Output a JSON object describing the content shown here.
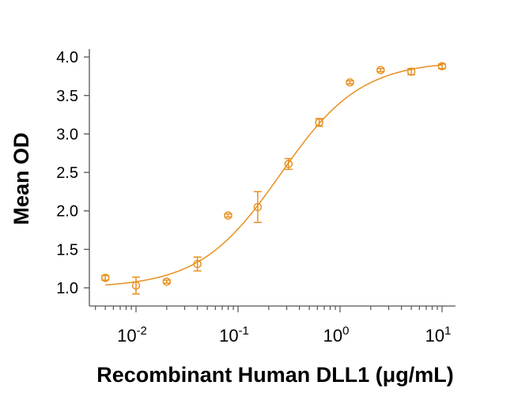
{
  "chart_data": {
    "type": "scatter",
    "title": "",
    "xlabel": "Recombinant Human DLL1 (μg/mL)",
    "ylabel": "Mean OD",
    "xscale": "log",
    "xlim": [
      0.004,
      15
    ],
    "ylim": [
      0.78,
      4.1
    ],
    "yticks": [
      "1.0",
      "1.5",
      "2.0",
      "2.5",
      "3.0",
      "3.5",
      "4.0"
    ],
    "xticks": [
      {
        "base": "10",
        "exp": "-2",
        "value": 0.01
      },
      {
        "base": "10",
        "exp": "-1",
        "value": 0.1
      },
      {
        "base": "10",
        "exp": "0",
        "value": 1
      },
      {
        "base": "10",
        "exp": "1",
        "value": 10
      }
    ],
    "series": [
      {
        "name": "DLL1",
        "color": "#E8901F",
        "x": [
          0.005,
          0.01,
          0.02,
          0.04,
          0.08,
          0.156,
          0.3125,
          0.625,
          1.25,
          2.5,
          5,
          10
        ],
        "y": [
          1.13,
          1.03,
          1.08,
          1.31,
          1.94,
          2.05,
          2.61,
          3.15,
          3.67,
          3.83,
          3.81,
          3.88
        ],
        "err": [
          0.03,
          0.11,
          0.02,
          0.09,
          0.02,
          0.2,
          0.07,
          0.05,
          0.02,
          0.02,
          0.04,
          0.03
        ]
      }
    ],
    "fit": {
      "model": "4PL",
      "bottom": 1.0,
      "top": 3.95,
      "ec50": 0.26,
      "hill": 1.1,
      "color": "#E8901F"
    },
    "grid": false,
    "legend": "none"
  }
}
